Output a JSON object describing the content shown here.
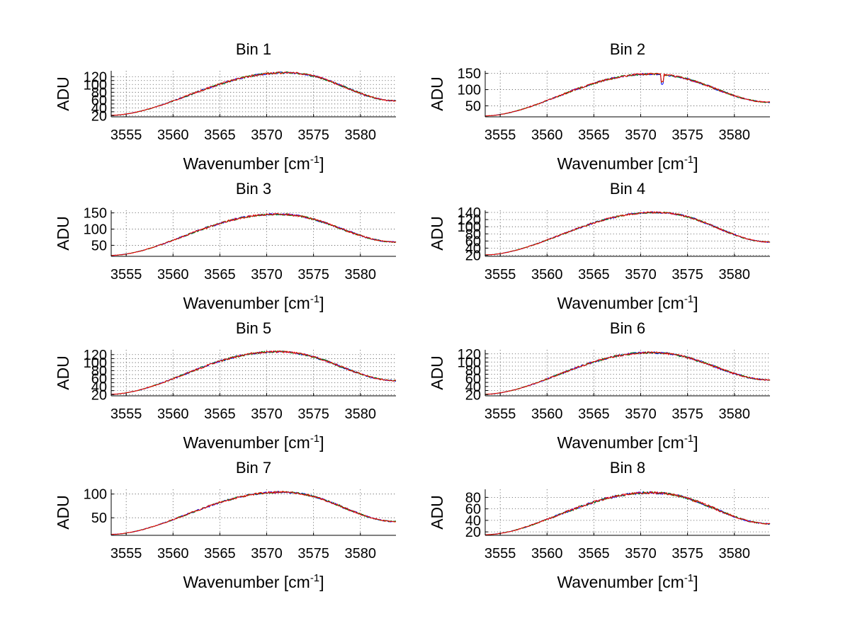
{
  "chart_data": [
    {
      "type": "line",
      "title": "Bin 1",
      "xlabel": "Wavenumber [cm",
      "xlabel_sup": "-1",
      "xlabel_end": "]",
      "ylabel": "ADU",
      "xlim": [
        3553.4,
        3583.8
      ],
      "ylim": [
        17,
        135
      ],
      "xticks": [
        3555,
        3560,
        3565,
        3570,
        3575,
        3580
      ],
      "yticks": [
        20,
        30,
        40,
        50,
        60,
        70,
        80,
        90,
        100,
        110,
        120
      ],
      "yticklabels": [
        "20",
        "",
        "40",
        "",
        "60",
        "",
        "80",
        "",
        "100",
        "",
        "120"
      ],
      "grid": true,
      "series_colors": [
        "#0000ff",
        "#008000",
        "#ff0000"
      ],
      "profile": {
        "center": 3572.0,
        "peak": 130,
        "start": 21,
        "end": 58,
        "noise": 2.5
      }
    },
    {
      "type": "line",
      "title": "Bin 2",
      "xlabel": "Wavenumber [cm",
      "xlabel_sup": "-1",
      "xlabel_end": "]",
      "ylabel": "ADU",
      "xlim": [
        3553.4,
        3583.8
      ],
      "ylim": [
        16,
        158
      ],
      "xticks": [
        3555,
        3560,
        3565,
        3570,
        3575,
        3580
      ],
      "yticks": [
        50,
        100,
        150
      ],
      "yticklabels": [
        "50",
        "100",
        "150"
      ],
      "grid": true,
      "series_colors": [
        "#0000ff",
        "#008000",
        "#ff0000"
      ],
      "profile": {
        "center": 3571.0,
        "peak": 148,
        "start": 19,
        "end": 61,
        "noise": 3,
        "dip": {
          "x": 3572.3,
          "depth": 28
        }
      }
    },
    {
      "type": "line",
      "title": "Bin 3",
      "xlabel": "Wavenumber [cm",
      "xlabel_sup": "-1",
      "xlabel_end": "]",
      "ylabel": "ADU",
      "xlim": [
        3553.4,
        3583.8
      ],
      "ylim": [
        16,
        158
      ],
      "xticks": [
        3555,
        3560,
        3565,
        3570,
        3575,
        3580
      ],
      "yticks": [
        50,
        100,
        150
      ],
      "yticklabels": [
        "50",
        "100",
        "150"
      ],
      "grid": true,
      "series_colors": [
        "#0000ff",
        "#008000",
        "#ff0000"
      ],
      "profile": {
        "center": 3571.0,
        "peak": 146,
        "start": 19,
        "end": 60,
        "noise": 3
      }
    },
    {
      "type": "line",
      "title": "Bin 4",
      "xlabel": "Wavenumber [cm",
      "xlabel_sup": "-1",
      "xlabel_end": "]",
      "ylabel": "ADU",
      "xlim": [
        3553.4,
        3583.8
      ],
      "ylim": [
        17,
        146
      ],
      "xticks": [
        3555,
        3560,
        3565,
        3570,
        3575,
        3580
      ],
      "yticks": [
        20,
        40,
        60,
        80,
        100,
        120,
        140
      ],
      "yticklabels": [
        "20",
        "40",
        "60",
        "80",
        "100",
        "120",
        "140"
      ],
      "grid": true,
      "series_colors": [
        "#0000ff",
        "#008000",
        "#ff0000"
      ],
      "profile": {
        "center": 3571.5,
        "peak": 140,
        "start": 21,
        "end": 57,
        "noise": 2.5
      }
    },
    {
      "type": "line",
      "title": "Bin 5",
      "xlabel": "Wavenumber [cm",
      "xlabel_sup": "-1",
      "xlabel_end": "]",
      "ylabel": "ADU",
      "xlim": [
        3553.4,
        3583.8
      ],
      "ylim": [
        17,
        132
      ],
      "xticks": [
        3555,
        3560,
        3565,
        3570,
        3575,
        3580
      ],
      "yticks": [
        20,
        30,
        40,
        50,
        60,
        70,
        80,
        90,
        100,
        110,
        120
      ],
      "yticklabels": [
        "20",
        "",
        "40",
        "",
        "60",
        "",
        "80",
        "",
        "100",
        "",
        "120"
      ],
      "grid": true,
      "series_colors": [
        "#0000ff",
        "#008000",
        "#ff0000"
      ],
      "profile": {
        "center": 3571.0,
        "peak": 127,
        "start": 21,
        "end": 55,
        "noise": 2.5
      }
    },
    {
      "type": "line",
      "title": "Bin 6",
      "xlabel": "Wavenumber [cm",
      "xlabel_sup": "-1",
      "xlabel_end": "]",
      "ylabel": "ADU",
      "xlim": [
        3553.4,
        3583.8
      ],
      "ylim": [
        17,
        130
      ],
      "xticks": [
        3555,
        3560,
        3565,
        3570,
        3575,
        3580
      ],
      "yticks": [
        20,
        30,
        40,
        50,
        60,
        70,
        80,
        90,
        100,
        110,
        120
      ],
      "yticklabels": [
        "20",
        "",
        "40",
        "",
        "60",
        "",
        "80",
        "",
        "100",
        "",
        "120"
      ],
      "grid": true,
      "series_colors": [
        "#0000ff",
        "#008000",
        "#ff0000"
      ],
      "profile": {
        "center": 3571.0,
        "peak": 123,
        "start": 21,
        "end": 56,
        "noise": 2.5
      }
    },
    {
      "type": "line",
      "title": "Bin 7",
      "xlabel": "Wavenumber [cm",
      "xlabel_sup": "-1",
      "xlabel_end": "]",
      "ylabel": "ADU",
      "xlim": [
        3553.4,
        3583.8
      ],
      "ylim": [
        13,
        110
      ],
      "xticks": [
        3555,
        3560,
        3565,
        3570,
        3575,
        3580
      ],
      "yticks": [
        50,
        100
      ],
      "yticklabels": [
        "50",
        "100"
      ],
      "grid": true,
      "series_colors": [
        "#0000ff",
        "#008000",
        "#ff0000"
      ],
      "profile": {
        "center": 3571.5,
        "peak": 104,
        "start": 15,
        "end": 42,
        "noise": 2
      }
    },
    {
      "type": "line",
      "title": "Bin 8",
      "xlabel": "Wavenumber [cm",
      "xlabel_sup": "-1",
      "xlabel_end": "]",
      "ylabel": "ADU",
      "xlim": [
        3553.4,
        3583.8
      ],
      "ylim": [
        14,
        94
      ],
      "xticks": [
        3555,
        3560,
        3565,
        3570,
        3575,
        3580
      ],
      "yticks": [
        20,
        40,
        60,
        80
      ],
      "yticklabels": [
        "20",
        "40",
        "60",
        "80"
      ],
      "grid": true,
      "series_colors": [
        "#0000ff",
        "#008000",
        "#ff0000"
      ],
      "profile": {
        "center": 3571.0,
        "peak": 88,
        "start": 15,
        "end": 34,
        "noise": 2
      }
    }
  ]
}
